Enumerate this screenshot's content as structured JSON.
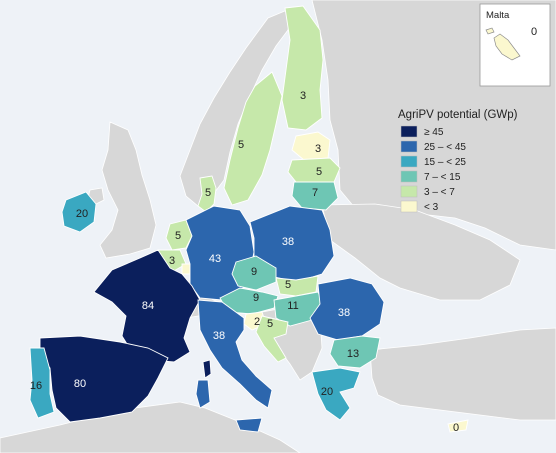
{
  "legend": {
    "title": "AgriPV potential (GWp)",
    "classes": [
      {
        "label": "≥ 45",
        "color": "#0b1f5c"
      },
      {
        "label": "25 – < 45",
        "color": "#2c66ad"
      },
      {
        "label": "15 – < 25",
        "color": "#3aa8c1"
      },
      {
        "label": "7 – < 15",
        "color": "#6ec6b4"
      },
      {
        "label": "3 – < 7",
        "color": "#c6e8aa"
      },
      {
        "label": "< 3",
        "color": "#fbf8cf"
      }
    ]
  },
  "inset": {
    "title": "Malta",
    "value": "0"
  },
  "countries": [
    {
      "id": "france",
      "value": "84",
      "color": "#0b1f5c"
    },
    {
      "id": "spain",
      "value": "80",
      "color": "#0b1f5c"
    },
    {
      "id": "germany",
      "value": "43",
      "color": "#2c66ad"
    },
    {
      "id": "poland",
      "value": "38",
      "color": "#2c66ad"
    },
    {
      "id": "romania",
      "value": "38",
      "color": "#2c66ad"
    },
    {
      "id": "italy",
      "value": "38",
      "color": "#2c66ad"
    },
    {
      "id": "ireland",
      "value": "20",
      "color": "#3aa8c1"
    },
    {
      "id": "greece",
      "value": "20",
      "color": "#3aa8c1"
    },
    {
      "id": "portugal",
      "value": "16",
      "color": "#3aa8c1"
    },
    {
      "id": "bulgaria",
      "value": "13",
      "color": "#6ec6b4"
    },
    {
      "id": "hungary",
      "value": "11",
      "color": "#6ec6b4"
    },
    {
      "id": "czechia",
      "value": "9",
      "color": "#6ec6b4"
    },
    {
      "id": "austria",
      "value": "9",
      "color": "#6ec6b4"
    },
    {
      "id": "lithuania",
      "value": "7",
      "color": "#6ec6b4"
    },
    {
      "id": "sweden",
      "value": "5",
      "color": "#c6e8aa"
    },
    {
      "id": "finland",
      "value": "3",
      "color": "#c6e8aa"
    },
    {
      "id": "latvia",
      "value": "5",
      "color": "#c6e8aa"
    },
    {
      "id": "estonia",
      "value": "3",
      "color": "#fbf8cf"
    },
    {
      "id": "denmark",
      "value": "5",
      "color": "#c6e8aa"
    },
    {
      "id": "netherlands",
      "value": "5",
      "color": "#c6e8aa"
    },
    {
      "id": "belgium",
      "value": "3",
      "color": "#c6e8aa"
    },
    {
      "id": "slovakia",
      "value": "5",
      "color": "#c6e8aa"
    },
    {
      "id": "croatia",
      "value": "5",
      "color": "#c6e8aa"
    },
    {
      "id": "slovenia",
      "value": "2",
      "color": "#fbf8cf"
    },
    {
      "id": "cyprus",
      "value": "0",
      "color": "#fbf8cf"
    },
    {
      "id": "luxembourg",
      "value": "",
      "color": "#fbf8cf"
    },
    {
      "id": "corsica",
      "value": "",
      "color": "#0b1f5c"
    },
    {
      "id": "sardinia",
      "value": "",
      "color": "#2c66ad"
    },
    {
      "id": "sicily",
      "value": "",
      "color": "#2c66ad"
    }
  ]
}
